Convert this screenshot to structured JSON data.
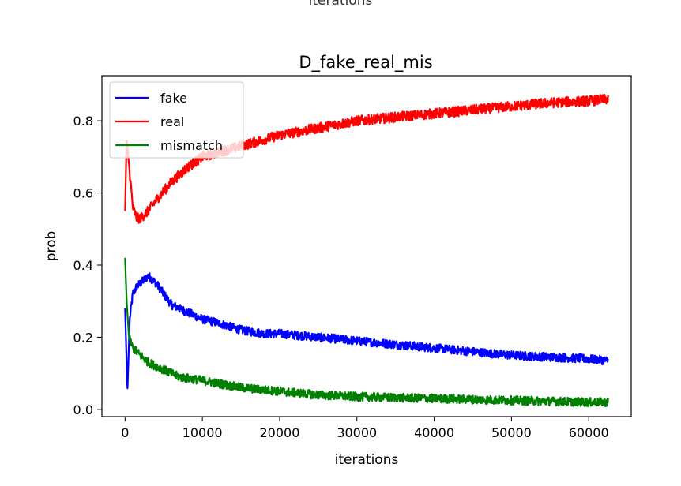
{
  "previous_figure": {
    "xlabel_fragment": "iterations"
  },
  "chart_data": {
    "type": "line",
    "title": "D_fake_real_mis",
    "xlabel": "iterations",
    "ylabel": "prob",
    "xlim": [
      -3000,
      65500
    ],
    "ylim": [
      -0.02,
      0.925
    ],
    "xticks": [
      0,
      10000,
      20000,
      30000,
      40000,
      50000,
      60000
    ],
    "yticks": [
      0.0,
      0.2,
      0.4,
      0.6,
      0.8
    ],
    "ytick_labels": [
      "0.0",
      "0.2",
      "0.4",
      "0.6",
      "0.8"
    ],
    "grid": false,
    "legend_position": "upper left",
    "series": [
      {
        "name": "fake",
        "color": "#0000ff",
        "noise": 0.012,
        "x": [
          0,
          300,
          600,
          1000,
          1500,
          2000,
          3000,
          4000,
          5000,
          6000,
          8000,
          10000,
          12000,
          15000,
          18000,
          20000,
          25000,
          30000,
          35000,
          40000,
          45000,
          50000,
          55000,
          60000,
          62500
        ],
        "y": [
          0.28,
          0.05,
          0.25,
          0.32,
          0.34,
          0.35,
          0.37,
          0.35,
          0.32,
          0.29,
          0.27,
          0.25,
          0.24,
          0.22,
          0.21,
          0.21,
          0.2,
          0.19,
          0.18,
          0.17,
          0.16,
          0.15,
          0.145,
          0.14,
          0.135
        ]
      },
      {
        "name": "real",
        "color": "#ff0000",
        "noise": 0.014,
        "x": [
          0,
          200,
          500,
          1000,
          1500,
          2000,
          3000,
          4000,
          6000,
          8000,
          10000,
          15000,
          20000,
          25000,
          30000,
          35000,
          40000,
          45000,
          50000,
          55000,
          60000,
          62500
        ],
        "y": [
          0.55,
          0.75,
          0.68,
          0.56,
          0.53,
          0.53,
          0.55,
          0.58,
          0.63,
          0.67,
          0.7,
          0.73,
          0.76,
          0.78,
          0.8,
          0.81,
          0.82,
          0.83,
          0.84,
          0.85,
          0.855,
          0.86
        ]
      },
      {
        "name": "mismatch",
        "color": "#008000",
        "noise": 0.012,
        "x": [
          0,
          200,
          500,
          1000,
          2000,
          3000,
          5000,
          7000,
          10000,
          15000,
          20000,
          25000,
          30000,
          40000,
          50000,
          60000,
          62500
        ],
        "y": [
          0.42,
          0.3,
          0.2,
          0.17,
          0.15,
          0.13,
          0.11,
          0.09,
          0.08,
          0.06,
          0.05,
          0.04,
          0.035,
          0.03,
          0.025,
          0.02,
          0.02
        ]
      }
    ]
  }
}
